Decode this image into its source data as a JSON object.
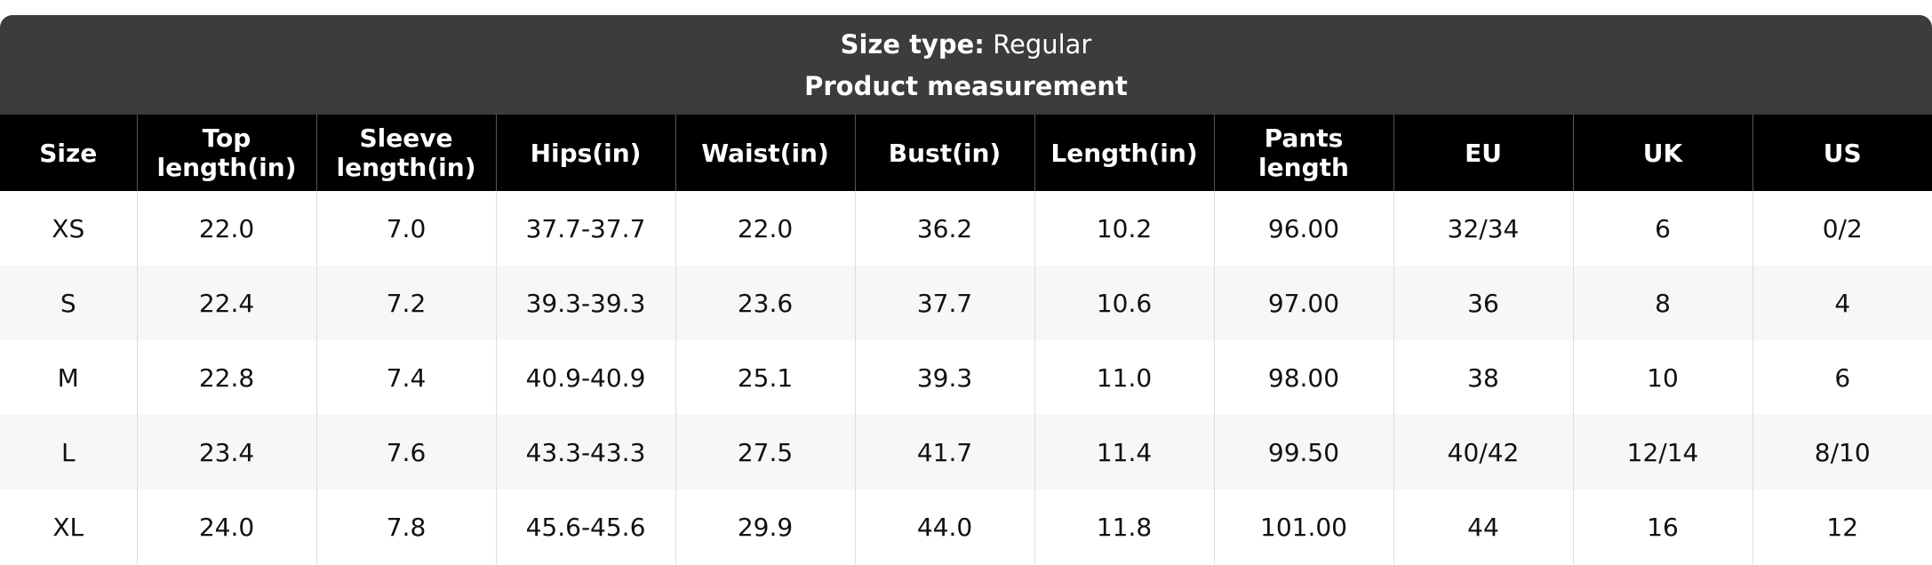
{
  "header": {
    "size_type_label": "Size type:",
    "size_type_value": "Regular",
    "title": "Product measurement"
  },
  "table": {
    "columns": [
      "Size",
      "Top length(in)",
      "Sleeve length(in)",
      "Hips(in)",
      "Waist(in)",
      "Bust(in)",
      "Length(in)",
      "Pants length",
      "EU",
      "UK",
      "US"
    ],
    "rows": [
      [
        "XS",
        "22.0",
        "7.0",
        "37.7-37.7",
        "22.0",
        "36.2",
        "10.2",
        "96.00",
        "32/34",
        "6",
        "0/2"
      ],
      [
        "S",
        "22.4",
        "7.2",
        "39.3-39.3",
        "23.6",
        "37.7",
        "10.6",
        "97.00",
        "36",
        "8",
        "4"
      ],
      [
        "M",
        "22.8",
        "7.4",
        "40.9-40.9",
        "25.1",
        "39.3",
        "11.0",
        "98.00",
        "38",
        "10",
        "6"
      ],
      [
        "L",
        "23.4",
        "7.6",
        "43.3-43.3",
        "27.5",
        "41.7",
        "11.4",
        "99.50",
        "40/42",
        "12/14",
        "8/10"
      ],
      [
        "XL",
        "24.0",
        "7.8",
        "45.6-45.6",
        "29.9",
        "44.0",
        "11.8",
        "101.00",
        "44",
        "16",
        "12"
      ]
    ]
  }
}
